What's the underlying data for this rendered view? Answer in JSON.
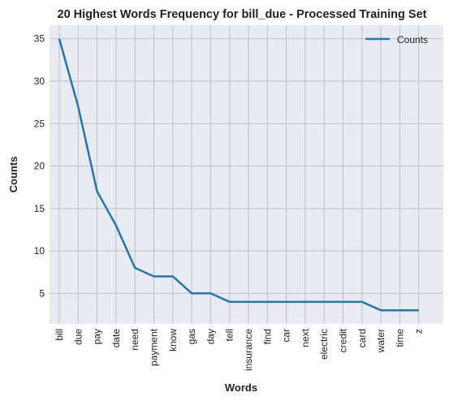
{
  "chart_data": {
    "type": "line",
    "title": "20 Highest Words Frequency for bill_due - Processed Training Set",
    "xlabel": "Words",
    "ylabel": "Counts",
    "categories": [
      "bill",
      "due",
      "pay",
      "date",
      "need",
      "payment",
      "know",
      "gas",
      "day",
      "tell",
      "insurance",
      "find",
      "car",
      "next",
      "electric",
      "credit",
      "card",
      "water",
      "time",
      "z"
    ],
    "series": [
      {
        "name": "Counts",
        "values": [
          35,
          27,
          17,
          13,
          8,
          7,
          7,
          5,
          5,
          4,
          4,
          4,
          4,
          4,
          4,
          4,
          4,
          3,
          3,
          3
        ]
      }
    ],
    "yticks": [
      5,
      10,
      15,
      20,
      25,
      30,
      35
    ],
    "ylim": [
      1.4,
      36.6
    ],
    "grid": true,
    "legend_position": "top-right",
    "colors": {
      "line": "#1f77b4",
      "plot_background": "#eaeaf2",
      "grid": "#c0c0c0"
    }
  }
}
